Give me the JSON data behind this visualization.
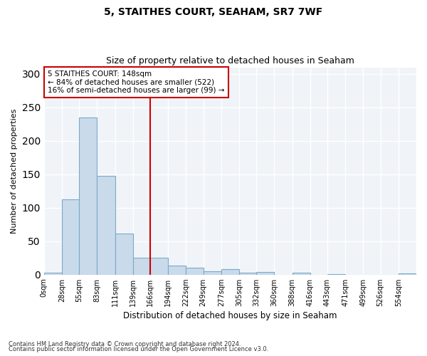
{
  "title1": "5, STAITHES COURT, SEAHAM, SR7 7WF",
  "title2": "Size of property relative to detached houses in Seaham",
  "xlabel": "Distribution of detached houses by size in Seaham",
  "ylabel": "Number of detached properties",
  "bar_labels": [
    "0sqm",
    "28sqm",
    "55sqm",
    "83sqm",
    "111sqm",
    "139sqm",
    "166sqm",
    "194sqm",
    "222sqm",
    "249sqm",
    "277sqm",
    "305sqm",
    "332sqm",
    "360sqm",
    "388sqm",
    "416sqm",
    "443sqm",
    "471sqm",
    "499sqm",
    "526sqm",
    "554sqm"
  ],
  "bar_values": [
    3,
    113,
    235,
    148,
    61,
    25,
    25,
    13,
    10,
    5,
    8,
    3,
    4,
    0,
    3,
    0,
    1,
    0,
    0,
    0,
    2
  ],
  "bar_color": "#c9daea",
  "bar_edge_color": "#7aaac8",
  "vline_x": 166,
  "vline_color": "#cc0000",
  "annotation_title": "5 STAITHES COURT: 148sqm",
  "annotation_line1": "← 84% of detached houses are smaller (522)",
  "annotation_line2": "16% of semi-detached houses are larger (99) →",
  "annotation_box_color": "#cc0000",
  "ylim": [
    0,
    310
  ],
  "yticks": [
    0,
    50,
    100,
    150,
    200,
    250,
    300
  ],
  "footnote1": "Contains HM Land Registry data © Crown copyright and database right 2024.",
  "footnote2": "Contains public sector information licensed under the Open Government Licence v3.0.",
  "bg_color": "#f0f4f8"
}
